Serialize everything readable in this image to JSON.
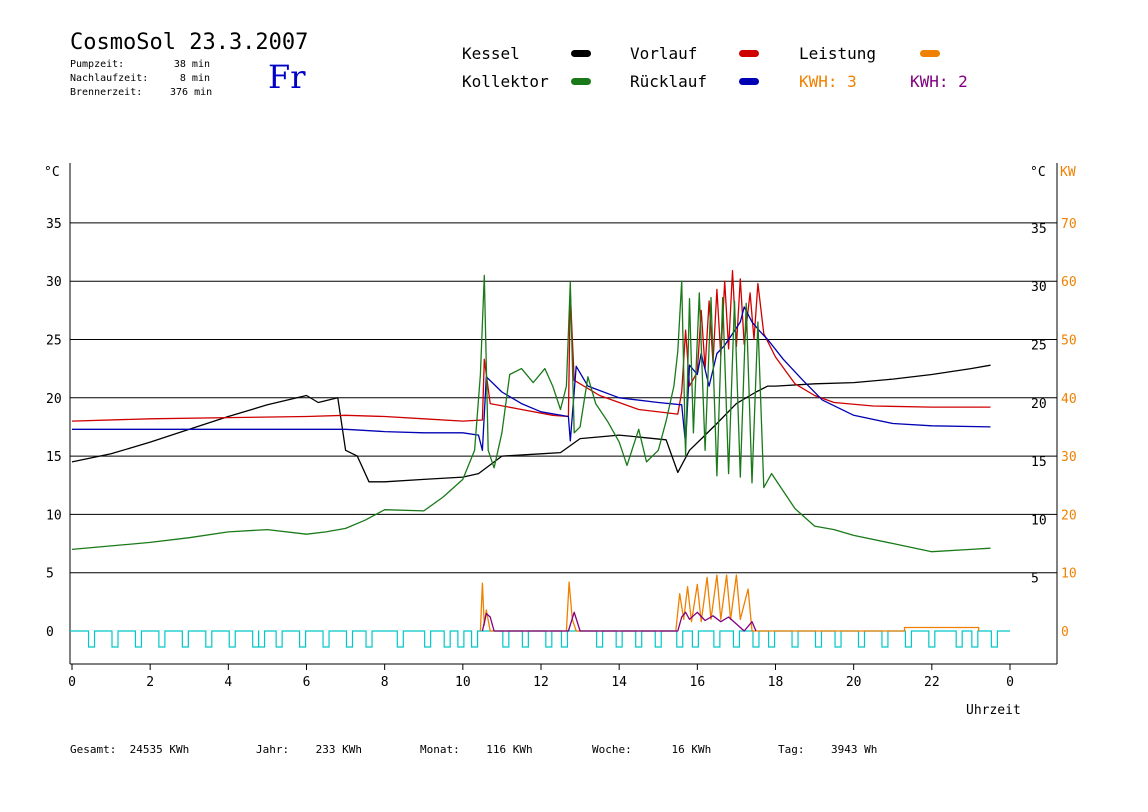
{
  "header": {
    "title": "CosmoSol 23.3.2007",
    "day": "Fr",
    "stats": [
      {
        "label": "Pumpzeit:",
        "value": "38 min"
      },
      {
        "label": "Nachlaufzeit:",
        "value": "8 min"
      },
      {
        "label": "Brennerzeit:",
        "value": "376 min"
      }
    ]
  },
  "legend": {
    "kessel": "Kessel",
    "kollektor": "Kollektor",
    "vorlauf": "Vorlauf",
    "ruecklauf": "Rücklauf",
    "leistung": "Leistung",
    "kwh_orange": "KWH: 3",
    "kwh_purple": "KWH: 2"
  },
  "colors": {
    "kessel": "#000000",
    "kollektor": "#1a7a1a",
    "vorlauf": "#d00000",
    "ruecklauf": "#0000b4",
    "leistung": "#f08000",
    "purple": "#800080",
    "pump": "#00c8c8",
    "day": "#0000c8"
  },
  "footer": [
    {
      "label": "Gesamt:",
      "value": "24535 KWh"
    },
    {
      "label": "Jahr:",
      "value": "233 KWh"
    },
    {
      "label": "Monat:",
      "value": "116 KWh"
    },
    {
      "label": "Woche:",
      "value": "16 KWh"
    },
    {
      "label": "Tag:",
      "value": "3943 Wh"
    }
  ],
  "chart_data": {
    "type": "line",
    "xlabel": "Uhrzeit",
    "ylabel_left": "°C",
    "ylabel_right": "°C",
    "ylabel_right2": "KW",
    "xlim": [
      0,
      24
    ],
    "ylim": [
      -3,
      40
    ],
    "x_ticks": [
      "0",
      "2",
      "4",
      "6",
      "8",
      "10",
      "12",
      "14",
      "16",
      "18",
      "20",
      "22",
      "0"
    ],
    "y_ticks_left": [
      0,
      5,
      10,
      15,
      20,
      25,
      30,
      35
    ],
    "y_ticks_right": [
      5,
      10,
      15,
      20,
      25,
      30,
      35
    ],
    "y_ticks_kw": [
      0,
      10,
      20,
      30,
      40,
      50,
      60,
      70
    ],
    "series": [
      {
        "name": "Kessel",
        "color": "#000000",
        "points": [
          [
            0,
            14.5
          ],
          [
            1,
            15.2
          ],
          [
            2,
            16.2
          ],
          [
            3,
            17.3
          ],
          [
            4,
            18.4
          ],
          [
            5,
            19.4
          ],
          [
            6,
            20.2
          ],
          [
            6.3,
            19.6
          ],
          [
            6.8,
            20.0
          ],
          [
            7.0,
            15.5
          ],
          [
            7.3,
            15.0
          ],
          [
            7.6,
            12.8
          ],
          [
            8,
            12.8
          ],
          [
            9,
            13.0
          ],
          [
            10,
            13.2
          ],
          [
            10.4,
            13.5
          ],
          [
            11,
            15.0
          ],
          [
            12,
            15.2
          ],
          [
            12.5,
            15.3
          ],
          [
            13,
            16.5
          ],
          [
            14,
            16.8
          ],
          [
            15.2,
            16.4
          ],
          [
            15.5,
            13.6
          ],
          [
            15.8,
            15.5
          ],
          [
            16.2,
            16.8
          ],
          [
            16.5,
            17.8
          ],
          [
            17,
            19.5
          ],
          [
            17.5,
            20.5
          ],
          [
            17.8,
            21.0
          ],
          [
            18,
            21.0
          ],
          [
            19,
            21.2
          ],
          [
            20,
            21.3
          ],
          [
            21,
            21.6
          ],
          [
            22,
            22.0
          ],
          [
            23,
            22.5
          ],
          [
            23.5,
            22.8
          ]
        ]
      },
      {
        "name": "Vorlauf",
        "color": "#d00000",
        "points": [
          [
            0,
            18.0
          ],
          [
            2,
            18.2
          ],
          [
            4,
            18.3
          ],
          [
            6,
            18.4
          ],
          [
            7,
            18.5
          ],
          [
            8,
            18.4
          ],
          [
            9,
            18.2
          ],
          [
            10,
            18.0
          ],
          [
            10.5,
            18.1
          ],
          [
            10.55,
            23.3
          ],
          [
            10.7,
            19.5
          ],
          [
            11.5,
            19.0
          ],
          [
            12.3,
            18.5
          ],
          [
            12.7,
            18.4
          ],
          [
            12.75,
            29.0
          ],
          [
            12.85,
            21.5
          ],
          [
            13.5,
            20.2
          ],
          [
            14.5,
            19.0
          ],
          [
            15.5,
            18.6
          ],
          [
            15.6,
            20.5
          ],
          [
            15.7,
            25.8
          ],
          [
            15.8,
            21.0
          ],
          [
            16.0,
            22.2
          ],
          [
            16.1,
            27.5
          ],
          [
            16.2,
            22.5
          ],
          [
            16.3,
            28.3
          ],
          [
            16.4,
            23.0
          ],
          [
            16.5,
            29.3
          ],
          [
            16.6,
            23.6
          ],
          [
            16.7,
            30.0
          ],
          [
            16.8,
            24.2
          ],
          [
            16.9,
            30.9
          ],
          [
            17.0,
            24.4
          ],
          [
            17.1,
            30.2
          ],
          [
            17.2,
            24.6
          ],
          [
            17.35,
            29.0
          ],
          [
            17.45,
            25.0
          ],
          [
            17.55,
            29.8
          ],
          [
            17.7,
            25.5
          ],
          [
            18,
            23.5
          ],
          [
            18.5,
            21.2
          ],
          [
            19,
            20.2
          ],
          [
            19.5,
            19.6
          ],
          [
            20.5,
            19.3
          ],
          [
            22,
            19.2
          ],
          [
            23.5,
            19.2
          ]
        ]
      },
      {
        "name": "Rücklauf",
        "color": "#0000b4",
        "points": [
          [
            0,
            17.3
          ],
          [
            2,
            17.3
          ],
          [
            4,
            17.3
          ],
          [
            6,
            17.3
          ],
          [
            7,
            17.3
          ],
          [
            8,
            17.1
          ],
          [
            9,
            17.0
          ],
          [
            10,
            17.0
          ],
          [
            10.4,
            16.8
          ],
          [
            10.5,
            15.5
          ],
          [
            10.6,
            21.8
          ],
          [
            11,
            20.5
          ],
          [
            11.5,
            19.5
          ],
          [
            12,
            18.8
          ],
          [
            12.7,
            18.4
          ],
          [
            12.75,
            16.3
          ],
          [
            12.9,
            22.7
          ],
          [
            13.2,
            21.0
          ],
          [
            14,
            20.0
          ],
          [
            15,
            19.6
          ],
          [
            15.6,
            19.4
          ],
          [
            15.7,
            16.0
          ],
          [
            15.8,
            22.8
          ],
          [
            16.0,
            22.0
          ],
          [
            16.1,
            23.8
          ],
          [
            16.3,
            21.0
          ],
          [
            16.5,
            23.8
          ],
          [
            16.7,
            24.5
          ],
          [
            16.9,
            25.5
          ],
          [
            17.1,
            26.5
          ],
          [
            17.2,
            27.8
          ],
          [
            17.4,
            26.5
          ],
          [
            17.6,
            25.7
          ],
          [
            17.8,
            25.0
          ],
          [
            18.2,
            23.3
          ],
          [
            18.7,
            21.5
          ],
          [
            19.2,
            19.8
          ],
          [
            20,
            18.5
          ],
          [
            21,
            17.8
          ],
          [
            22,
            17.6
          ],
          [
            23.5,
            17.5
          ]
        ]
      },
      {
        "name": "Kollektor",
        "color": "#1a7a1a",
        "points": [
          [
            0,
            7.0
          ],
          [
            1,
            7.3
          ],
          [
            2,
            7.6
          ],
          [
            3,
            8.0
          ],
          [
            4,
            8.5
          ],
          [
            5,
            8.7
          ],
          [
            6,
            8.3
          ],
          [
            6.5,
            8.5
          ],
          [
            7,
            8.8
          ],
          [
            7.5,
            9.5
          ],
          [
            8,
            10.4
          ],
          [
            9,
            10.3
          ],
          [
            9.5,
            11.5
          ],
          [
            10,
            13.0
          ],
          [
            10.3,
            15.5
          ],
          [
            10.45,
            22.0
          ],
          [
            10.55,
            30.5
          ],
          [
            10.65,
            15.5
          ],
          [
            10.8,
            14.0
          ],
          [
            11.0,
            17.0
          ],
          [
            11.2,
            22.0
          ],
          [
            11.5,
            22.5
          ],
          [
            11.8,
            21.3
          ],
          [
            12.1,
            22.5
          ],
          [
            12.3,
            21.0
          ],
          [
            12.5,
            19.0
          ],
          [
            12.65,
            21.0
          ],
          [
            12.75,
            29.9
          ],
          [
            12.85,
            17.0
          ],
          [
            13.0,
            17.5
          ],
          [
            13.2,
            21.8
          ],
          [
            13.4,
            19.5
          ],
          [
            13.7,
            18.0
          ],
          [
            14.0,
            16.2
          ],
          [
            14.2,
            14.2
          ],
          [
            14.5,
            17.3
          ],
          [
            14.7,
            14.5
          ],
          [
            15.0,
            15.5
          ],
          [
            15.2,
            18.0
          ],
          [
            15.4,
            21.0
          ],
          [
            15.5,
            24.0
          ],
          [
            15.6,
            30.0
          ],
          [
            15.7,
            15.0
          ],
          [
            15.8,
            28.5
          ],
          [
            15.9,
            17.0
          ],
          [
            16.05,
            29.0
          ],
          [
            16.2,
            15.5
          ],
          [
            16.35,
            28.6
          ],
          [
            16.5,
            13.3
          ],
          [
            16.65,
            28.6
          ],
          [
            16.8,
            13.5
          ],
          [
            16.95,
            28.3
          ],
          [
            17.1,
            13.2
          ],
          [
            17.25,
            28.1
          ],
          [
            17.4,
            12.7
          ],
          [
            17.55,
            26.5
          ],
          [
            17.7,
            12.3
          ],
          [
            17.9,
            13.5
          ],
          [
            18.2,
            12.0
          ],
          [
            18.5,
            10.5
          ],
          [
            19,
            9.0
          ],
          [
            19.5,
            8.7
          ],
          [
            20,
            8.2
          ],
          [
            21,
            7.5
          ],
          [
            22,
            6.8
          ],
          [
            23,
            7.0
          ],
          [
            23.5,
            7.1
          ]
        ]
      },
      {
        "name": "Leistung",
        "color": "#f08000",
        "points": [
          [
            10.45,
            0
          ],
          [
            10.5,
            4.1
          ],
          [
            10.55,
            0.5
          ],
          [
            10.6,
            1.8
          ],
          [
            10.7,
            0
          ],
          [
            12.65,
            0
          ],
          [
            12.72,
            4.2
          ],
          [
            12.8,
            1.0
          ],
          [
            12.9,
            0
          ],
          [
            15.45,
            0
          ],
          [
            15.55,
            3.2
          ],
          [
            15.65,
            1.0
          ],
          [
            15.75,
            3.8
          ],
          [
            15.85,
            0.8
          ],
          [
            16.0,
            4.0
          ],
          [
            16.1,
            0.8
          ],
          [
            16.25,
            4.6
          ],
          [
            16.35,
            1.0
          ],
          [
            16.5,
            4.8
          ],
          [
            16.6,
            1.0
          ],
          [
            16.75,
            4.8
          ],
          [
            16.85,
            1.0
          ],
          [
            17.0,
            4.8
          ],
          [
            17.1,
            1.0
          ],
          [
            17.3,
            3.6
          ],
          [
            17.4,
            0
          ],
          [
            21.3,
            0
          ],
          [
            21.3,
            0.3
          ],
          [
            23.2,
            0.3
          ],
          [
            23.2,
            0
          ]
        ]
      },
      {
        "name": "Leistung-2",
        "color": "#800080",
        "points": [
          [
            10.5,
            0
          ],
          [
            10.6,
            1.5
          ],
          [
            10.7,
            1.2
          ],
          [
            10.8,
            0
          ],
          [
            12.7,
            0
          ],
          [
            12.85,
            1.6
          ],
          [
            13.0,
            0
          ],
          [
            15.5,
            0
          ],
          [
            15.6,
            1.2
          ],
          [
            15.7,
            1.6
          ],
          [
            15.8,
            1.0
          ],
          [
            16.0,
            1.6
          ],
          [
            16.2,
            0.9
          ],
          [
            16.4,
            1.3
          ],
          [
            16.6,
            0.8
          ],
          [
            16.8,
            1.2
          ],
          [
            17.0,
            0.6
          ],
          [
            17.2,
            0
          ],
          [
            17.4,
            0.8
          ],
          [
            17.5,
            0
          ]
        ]
      }
    ],
    "pump_pulses": [
      0.5,
      1.1,
      1.7,
      2.3,
      2.9,
      3.5,
      4.1,
      4.7,
      4.85,
      5.3,
      5.9,
      6.5,
      7.1,
      7.6,
      8.4,
      9.1,
      9.6,
      9.95,
      10.3,
      11.1,
      11.6,
      12.2,
      12.6,
      13.5,
      14.0,
      14.5,
      15.0,
      15.55,
      15.95,
      16.5,
      17.0,
      17.5,
      17.9,
      18.5,
      19.1,
      19.6,
      20.2,
      20.8,
      21.4,
      22.0,
      22.7,
      23.1,
      23.6
    ]
  }
}
